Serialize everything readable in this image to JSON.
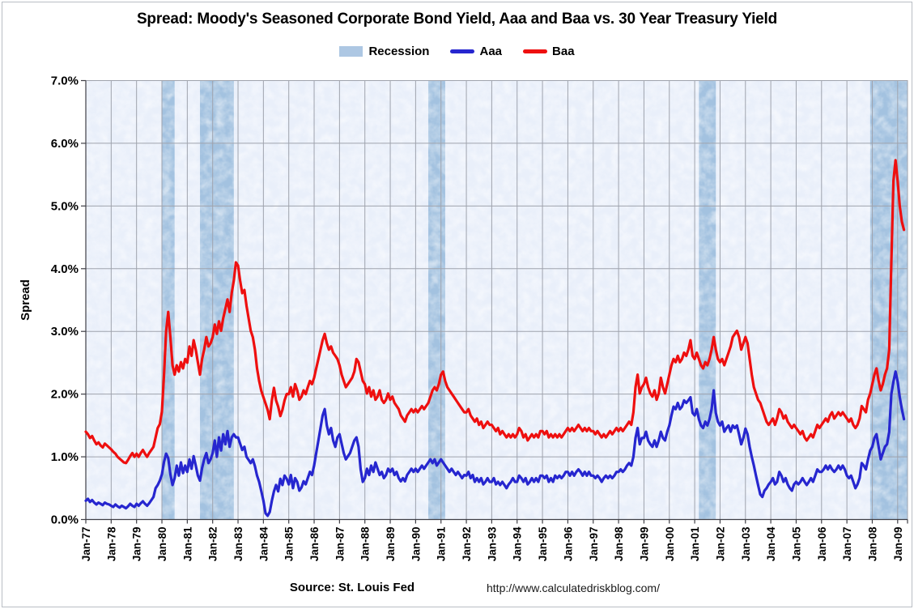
{
  "title": "Spread: Moody's Seasoned Corporate Bond Yield, Aaa and Baa vs. 30 Year Treasury Yield",
  "legend": {
    "recession_label": "Recession",
    "aaa_label": "Aaa",
    "baa_label": "Baa"
  },
  "footer": {
    "source": "Source: St. Louis Fed",
    "url": "http://www.calculatedriskblog.com/"
  },
  "colors": {
    "aaa": "#2626cf",
    "baa": "#ee0f0f",
    "recession_band": "#a3c2e0",
    "recession_legend": "#adc7e3",
    "plot_bg": "#e9effa",
    "grid": "#9fa3ad",
    "axis": "#3f3f46",
    "text": "#000000"
  },
  "chart_data": {
    "type": "line",
    "title": "Spread: Moody's Seasoned Corporate Bond Yield, Aaa and Baa vs. 30 Year Treasury Yield",
    "xlabel": "",
    "ylabel": "Spread",
    "ylim": [
      0,
      7
    ],
    "grid": true,
    "legend_position": "top",
    "x_start": "Jan-1977",
    "x_frequency": "monthly",
    "y_tick_labels": [
      "0.0%",
      "1.0%",
      "2.0%",
      "3.0%",
      "4.0%",
      "5.0%",
      "6.0%",
      "7.0%"
    ],
    "x_tick_labels": [
      "Jan-77",
      "Jan-78",
      "Jan-79",
      "Jan-80",
      "Jan-81",
      "Jan-82",
      "Jan-83",
      "Jan-84",
      "Jan-85",
      "Jan-86",
      "Jan-87",
      "Jan-88",
      "Jan-89",
      "Jan-90",
      "Jan-91",
      "Jan-92",
      "Jan-93",
      "Jan-94",
      "Jan-95",
      "Jan-96",
      "Jan-97",
      "Jan-98",
      "Jan-99",
      "Jan-00",
      "Jan-01",
      "Jan-02",
      "Jan-03",
      "Jan-04",
      "Jan-05",
      "Jan-06",
      "Jan-07",
      "Jan-08",
      "Jan-09"
    ],
    "recession_bands_months": [
      [
        36,
        42
      ],
      [
        54,
        70
      ],
      [
        162,
        170
      ],
      [
        290,
        298
      ],
      [
        371,
        389
      ]
    ],
    "series": [
      {
        "name": "Aaa",
        "color": "#2626cf",
        "values": [
          0.3,
          0.33,
          0.28,
          0.31,
          0.27,
          0.24,
          0.27,
          0.25,
          0.23,
          0.27,
          0.25,
          0.24,
          0.22,
          0.2,
          0.24,
          0.21,
          0.19,
          0.22,
          0.2,
          0.18,
          0.21,
          0.25,
          0.22,
          0.2,
          0.25,
          0.22,
          0.26,
          0.29,
          0.25,
          0.22,
          0.26,
          0.31,
          0.36,
          0.5,
          0.55,
          0.62,
          0.72,
          0.92,
          1.05,
          0.98,
          0.72,
          0.55,
          0.66,
          0.86,
          0.7,
          0.91,
          0.74,
          0.86,
          0.76,
          0.96,
          0.81,
          1.01,
          0.86,
          0.7,
          0.62,
          0.82,
          0.96,
          1.06,
          0.9,
          0.96,
          1.06,
          1.26,
          1.0,
          1.31,
          1.1,
          1.36,
          1.2,
          1.41,
          1.16,
          1.31,
          1.36,
          1.31,
          1.31,
          1.21,
          1.11,
          1.16,
          1.0,
          0.95,
          0.9,
          0.96,
          0.85,
          0.7,
          0.6,
          0.45,
          0.3,
          0.1,
          0.06,
          0.12,
          0.3,
          0.45,
          0.55,
          0.45,
          0.65,
          0.55,
          0.7,
          0.65,
          0.56,
          0.71,
          0.5,
          0.66,
          0.6,
          0.46,
          0.51,
          0.61,
          0.56,
          0.66,
          0.76,
          0.71,
          0.86,
          1.06,
          1.26,
          1.46,
          1.66,
          1.76,
          1.5,
          1.36,
          1.46,
          1.26,
          1.16,
          1.31,
          1.36,
          1.21,
          1.06,
          0.96,
          1.01,
          1.06,
          1.16,
          1.26,
          1.31,
          1.16,
          0.8,
          0.6,
          0.66,
          0.81,
          0.71,
          0.86,
          0.76,
          0.91,
          0.81,
          0.71,
          0.76,
          0.66,
          0.71,
          0.81,
          0.76,
          0.81,
          0.71,
          0.76,
          0.66,
          0.61,
          0.66,
          0.61,
          0.71,
          0.76,
          0.81,
          0.76,
          0.81,
          0.76,
          0.81,
          0.86,
          0.81,
          0.86,
          0.91,
          0.96,
          0.9,
          0.96,
          0.86,
          0.91,
          0.96,
          0.91,
          0.86,
          0.81,
          0.76,
          0.81,
          0.76,
          0.71,
          0.76,
          0.71,
          0.66,
          0.71,
          0.7,
          0.76,
          0.66,
          0.71,
          0.6,
          0.66,
          0.6,
          0.66,
          0.56,
          0.6,
          0.66,
          0.6,
          0.6,
          0.66,
          0.56,
          0.6,
          0.55,
          0.6,
          0.55,
          0.5,
          0.56,
          0.6,
          0.66,
          0.6,
          0.6,
          0.7,
          0.66,
          0.6,
          0.66,
          0.56,
          0.6,
          0.66,
          0.6,
          0.66,
          0.6,
          0.7,
          0.7,
          0.66,
          0.7,
          0.6,
          0.66,
          0.6,
          0.7,
          0.66,
          0.7,
          0.66,
          0.7,
          0.76,
          0.76,
          0.7,
          0.76,
          0.7,
          0.76,
          0.8,
          0.76,
          0.7,
          0.76,
          0.7,
          0.76,
          0.7,
          0.7,
          0.66,
          0.7,
          0.66,
          0.6,
          0.66,
          0.7,
          0.66,
          0.7,
          0.66,
          0.7,
          0.76,
          0.76,
          0.8,
          0.76,
          0.8,
          0.86,
          0.9,
          0.86,
          1.0,
          1.3,
          1.46,
          1.2,
          1.3,
          1.3,
          1.4,
          1.26,
          1.2,
          1.16,
          1.26,
          1.16,
          1.26,
          1.4,
          1.3,
          1.26,
          1.4,
          1.5,
          1.66,
          1.8,
          1.76,
          1.86,
          1.76,
          1.8,
          1.9,
          1.86,
          1.9,
          1.95,
          1.7,
          1.66,
          1.76,
          1.6,
          1.5,
          1.46,
          1.56,
          1.5,
          1.6,
          1.76,
          2.06,
          1.7,
          1.56,
          1.5,
          1.56,
          1.4,
          1.46,
          1.5,
          1.4,
          1.5,
          1.46,
          1.5,
          1.36,
          1.2,
          1.3,
          1.45,
          1.36,
          1.16,
          1.0,
          0.86,
          0.7,
          0.55,
          0.4,
          0.36,
          0.46,
          0.5,
          0.56,
          0.6,
          0.66,
          0.56,
          0.6,
          0.76,
          0.7,
          0.6,
          0.66,
          0.56,
          0.5,
          0.46,
          0.56,
          0.6,
          0.56,
          0.6,
          0.66,
          0.6,
          0.55,
          0.6,
          0.66,
          0.6,
          0.7,
          0.8,
          0.76,
          0.76,
          0.8,
          0.86,
          0.8,
          0.86,
          0.8,
          0.76,
          0.8,
          0.86,
          0.8,
          0.86,
          0.8,
          0.7,
          0.66,
          0.7,
          0.6,
          0.5,
          0.56,
          0.66,
          0.9,
          0.86,
          0.8,
          0.96,
          1.1,
          1.16,
          1.3,
          1.36,
          1.16,
          0.96,
          1.06,
          1.16,
          1.2,
          1.4,
          2.0,
          2.2,
          2.36,
          2.2,
          1.95,
          1.76,
          1.6
        ]
      },
      {
        "name": "Baa",
        "color": "#ee0f0f",
        "values": [
          1.4,
          1.36,
          1.3,
          1.33,
          1.26,
          1.2,
          1.23,
          1.18,
          1.15,
          1.21,
          1.18,
          1.15,
          1.12,
          1.08,
          1.05,
          1.0,
          0.97,
          0.94,
          0.91,
          0.9,
          0.95,
          1.01,
          1.06,
          1.0,
          1.05,
          1.0,
          1.06,
          1.11,
          1.05,
          1.0,
          1.06,
          1.11,
          1.16,
          1.31,
          1.46,
          1.52,
          1.72,
          2.31,
          3.0,
          3.31,
          2.9,
          2.46,
          2.31,
          2.46,
          2.36,
          2.51,
          2.41,
          2.56,
          2.5,
          2.76,
          2.61,
          2.86,
          2.71,
          2.51,
          2.31,
          2.56,
          2.71,
          2.91,
          2.76,
          2.81,
          2.91,
          3.11,
          2.96,
          3.16,
          3.01,
          3.21,
          3.36,
          3.51,
          3.31,
          3.61,
          3.81,
          4.1,
          4.05,
          3.81,
          3.61,
          3.66,
          3.41,
          3.21,
          3.01,
          2.91,
          2.71,
          2.41,
          2.21,
          2.05,
          1.95,
          1.85,
          1.75,
          1.6,
          1.9,
          2.1,
          1.9,
          1.8,
          1.65,
          1.75,
          1.9,
          2.0,
          2.0,
          2.11,
          1.96,
          2.16,
          2.06,
          1.91,
          1.96,
          2.06,
          2.0,
          2.11,
          2.21,
          2.16,
          2.26,
          2.41,
          2.56,
          2.71,
          2.86,
          2.96,
          2.81,
          2.71,
          2.76,
          2.66,
          2.61,
          2.56,
          2.46,
          2.31,
          2.21,
          2.11,
          2.16,
          2.21,
          2.26,
          2.36,
          2.56,
          2.51,
          2.36,
          2.21,
          2.16,
          2.01,
          2.11,
          1.96,
          2.06,
          1.91,
          1.96,
          2.06,
          1.91,
          1.86,
          1.91,
          2.01,
          1.91,
          1.96,
          1.86,
          1.81,
          1.76,
          1.66,
          1.61,
          1.56,
          1.66,
          1.71,
          1.76,
          1.71,
          1.76,
          1.71,
          1.76,
          1.81,
          1.76,
          1.81,
          1.86,
          1.96,
          2.06,
          2.11,
          2.06,
          2.16,
          2.31,
          2.36,
          2.21,
          2.11,
          2.06,
          2.01,
          1.96,
          1.91,
          1.86,
          1.81,
          1.76,
          1.71,
          1.71,
          1.76,
          1.66,
          1.61,
          1.56,
          1.61,
          1.51,
          1.56,
          1.46,
          1.51,
          1.56,
          1.51,
          1.51,
          1.46,
          1.41,
          1.46,
          1.36,
          1.41,
          1.36,
          1.31,
          1.36,
          1.31,
          1.36,
          1.31,
          1.36,
          1.46,
          1.41,
          1.31,
          1.36,
          1.26,
          1.31,
          1.36,
          1.31,
          1.36,
          1.31,
          1.41,
          1.41,
          1.36,
          1.41,
          1.31,
          1.36,
          1.31,
          1.36,
          1.31,
          1.36,
          1.31,
          1.36,
          1.41,
          1.46,
          1.41,
          1.46,
          1.41,
          1.46,
          1.51,
          1.46,
          1.41,
          1.46,
          1.41,
          1.46,
          1.41,
          1.41,
          1.36,
          1.41,
          1.36,
          1.31,
          1.36,
          1.31,
          1.36,
          1.41,
          1.36,
          1.41,
          1.46,
          1.41,
          1.46,
          1.41,
          1.46,
          1.51,
          1.56,
          1.51,
          1.71,
          2.11,
          2.31,
          2.01,
          2.11,
          2.16,
          2.26,
          2.11,
          2.01,
          1.96,
          2.06,
          1.91,
          2.01,
          2.26,
          2.11,
          2.01,
          2.16,
          2.31,
          2.46,
          2.56,
          2.51,
          2.61,
          2.51,
          2.56,
          2.66,
          2.61,
          2.71,
          2.86,
          2.61,
          2.56,
          2.66,
          2.56,
          2.46,
          2.41,
          2.51,
          2.46,
          2.56,
          2.71,
          2.91,
          2.71,
          2.56,
          2.51,
          2.56,
          2.46,
          2.56,
          2.66,
          2.76,
          2.91,
          2.96,
          3.01,
          2.91,
          2.71,
          2.81,
          2.91,
          2.81,
          2.56,
          2.31,
          2.11,
          2.01,
          1.91,
          1.86,
          1.76,
          1.66,
          1.56,
          1.51,
          1.56,
          1.61,
          1.51,
          1.61,
          1.76,
          1.71,
          1.61,
          1.66,
          1.56,
          1.51,
          1.46,
          1.51,
          1.46,
          1.41,
          1.36,
          1.41,
          1.31,
          1.26,
          1.31,
          1.36,
          1.31,
          1.41,
          1.51,
          1.46,
          1.51,
          1.56,
          1.61,
          1.56,
          1.66,
          1.71,
          1.61,
          1.66,
          1.71,
          1.66,
          1.71,
          1.66,
          1.61,
          1.56,
          1.61,
          1.51,
          1.46,
          1.51,
          1.61,
          1.81,
          1.76,
          1.71,
          1.91,
          2.01,
          2.16,
          2.31,
          2.41,
          2.21,
          2.06,
          2.16,
          2.31,
          2.41,
          2.71,
          4.1,
          5.4,
          5.73,
          5.4,
          5.0,
          4.75,
          4.62
        ]
      }
    ]
  }
}
